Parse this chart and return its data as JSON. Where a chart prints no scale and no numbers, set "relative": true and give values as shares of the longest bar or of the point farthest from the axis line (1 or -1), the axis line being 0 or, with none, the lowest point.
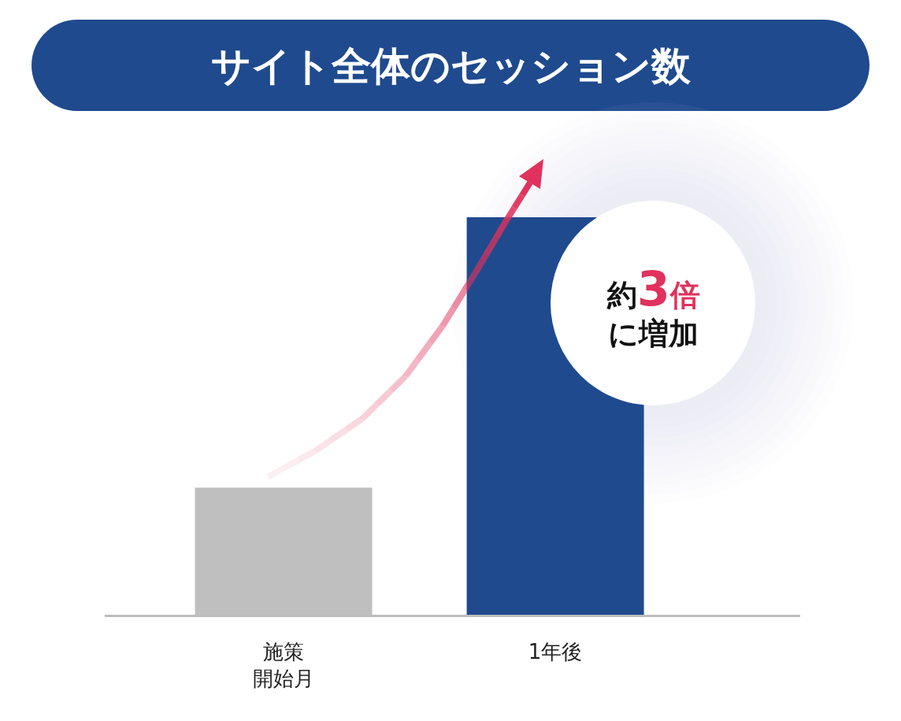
{
  "chart_data": {
    "type": "bar",
    "title": "サイト全体のセッション数",
    "categories": [
      "施策開始月",
      "1年後"
    ],
    "values": [
      0.32,
      1
    ],
    "colors": [
      "#bfbfbf",
      "#1f4a8e"
    ],
    "relative": true,
    "annotations": [
      "約3倍に増加"
    ]
  }
}
